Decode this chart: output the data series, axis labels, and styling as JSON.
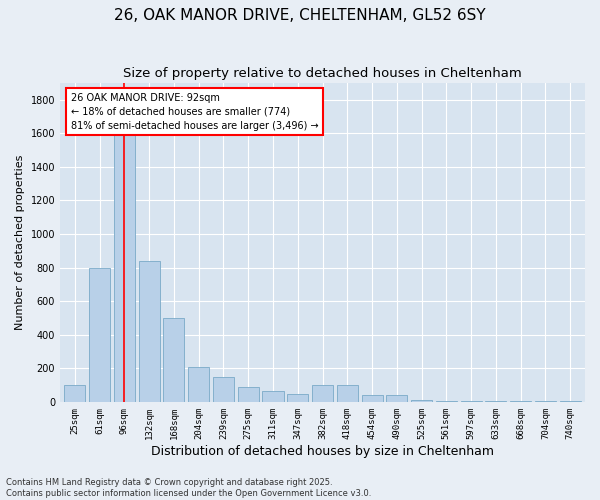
{
  "title1": "26, OAK MANOR DRIVE, CHELTENHAM, GL52 6SY",
  "title2": "Size of property relative to detached houses in Cheltenham",
  "xlabel": "Distribution of detached houses by size in Cheltenham",
  "ylabel": "Number of detached properties",
  "footnote": "Contains HM Land Registry data © Crown copyright and database right 2025.\nContains public sector information licensed under the Open Government Licence v3.0.",
  "bins": [
    "25sqm",
    "61sqm",
    "96sqm",
    "132sqm",
    "168sqm",
    "204sqm",
    "239sqm",
    "275sqm",
    "311sqm",
    "347sqm",
    "382sqm",
    "418sqm",
    "454sqm",
    "490sqm",
    "525sqm",
    "561sqm",
    "597sqm",
    "633sqm",
    "668sqm",
    "704sqm",
    "740sqm"
  ],
  "values": [
    100,
    800,
    1650,
    840,
    500,
    210,
    150,
    90,
    65,
    45,
    100,
    100,
    40,
    40,
    10,
    5,
    5,
    5,
    5,
    5,
    5
  ],
  "bar_color": "#b8d0e8",
  "bar_edge_color": "#7aaac8",
  "vline_x_index": 2,
  "vline_color": "red",
  "annotation_text": "26 OAK MANOR DRIVE: 92sqm\n← 18% of detached houses are smaller (774)\n81% of semi-detached houses are larger (3,496) →",
  "annotation_box_color": "white",
  "annotation_box_edge": "red",
  "ylim": [
    0,
    1900
  ],
  "yticks": [
    0,
    200,
    400,
    600,
    800,
    1000,
    1200,
    1400,
    1600,
    1800
  ],
  "bg_color": "#e8eef5",
  "plot_bg": "#d8e4f0",
  "title1_fontsize": 11,
  "title2_fontsize": 9.5,
  "xlabel_fontsize": 9,
  "ylabel_fontsize": 8,
  "footnote_fontsize": 6,
  "annotation_fontsize": 7,
  "tick_fontsize": 6.5
}
